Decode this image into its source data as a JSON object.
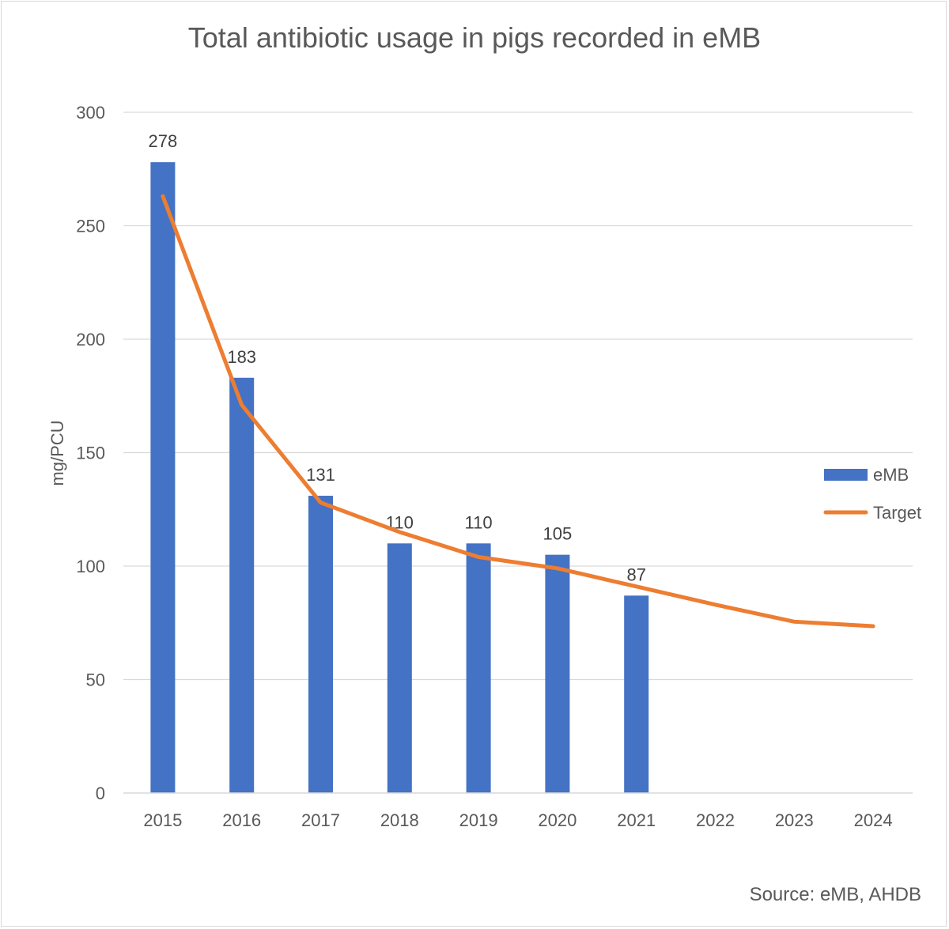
{
  "chart_data": {
    "type": "bar",
    "title": "Total antibiotic usage in pigs recorded in eMB",
    "xlabel": "",
    "ylabel": "mg/PCU",
    "ylim": [
      0,
      300
    ],
    "yticks": [
      0,
      50,
      100,
      150,
      200,
      250,
      300
    ],
    "grid": true,
    "legend_position": "right",
    "categories": [
      "2015",
      "2016",
      "2017",
      "2018",
      "2019",
      "2020",
      "2021",
      "2022",
      "2023",
      "2024"
    ],
    "series": [
      {
        "name": "eMB",
        "type": "bar",
        "color": "#4472c4",
        "values": [
          278,
          183,
          131,
          110,
          110,
          105,
          87,
          null,
          null,
          null
        ],
        "data_labels": true
      },
      {
        "name": "Target",
        "type": "line",
        "color": "#ed7d31",
        "values": [
          263,
          171,
          128,
          115,
          104,
          99,
          91,
          83,
          75.5,
          73.5
        ]
      }
    ],
    "source": "Source: eMB, AHDB"
  }
}
